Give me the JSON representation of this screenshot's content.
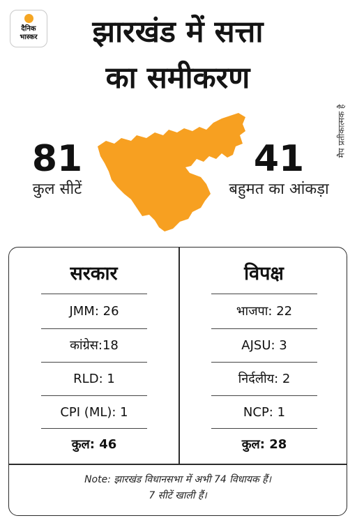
{
  "logo": {
    "line1": "दैनिक",
    "line2": "भास्कर"
  },
  "title": {
    "line1": "झारखंड में सत्ता",
    "line2": "का समीकरण"
  },
  "map_note": "मैप प्रतीकात्मक है",
  "map_color": "#f7a021",
  "stats": {
    "total": {
      "value": "81",
      "label": "कुल सीटें"
    },
    "majority": {
      "value": "41",
      "label": "बहुमत का आंकड़ा"
    }
  },
  "government": {
    "heading": "सरकार",
    "rows": [
      "JMM: 26",
      "कांग्रेस:18",
      "RLD: 1",
      "CPI (ML): 1"
    ],
    "total": "कुल: 46"
  },
  "opposition": {
    "heading": "विपक्ष",
    "rows": [
      "भाजपा: 22",
      "AJSU: 3",
      "निर्दलीय: 2",
      "NCP: 1"
    ],
    "total": "कुल: 28"
  },
  "note": {
    "line1": "Note: झारखंड विधानसभा में अभी 74 विधायक हैं।",
    "line2": "7 सीटें खाली हैं।"
  }
}
